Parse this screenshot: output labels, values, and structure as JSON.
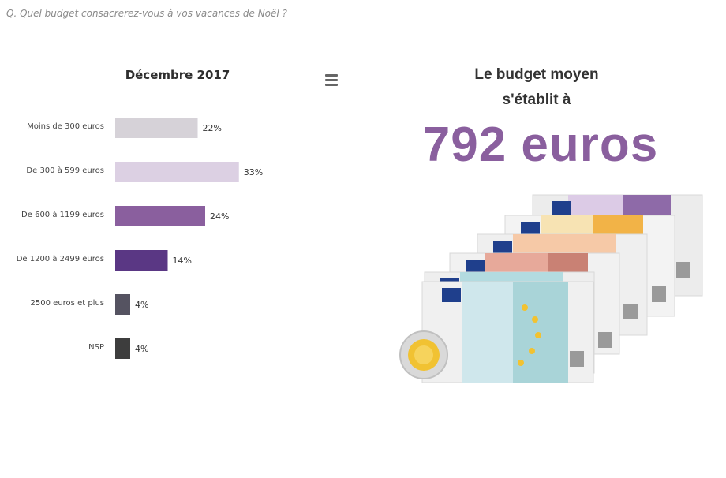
{
  "question": "Q. Quel budget consacrerez-vous à vos vacances de Noël ?",
  "menu_icon": "hamburger-menu-icon",
  "summary": {
    "line1": "Le budget moyen",
    "line2": "s'établit à",
    "value": "792 euros",
    "accent_color": "#8a5f9e"
  },
  "illustration": {
    "banknotes": [
      "500",
      "200",
      "100",
      "50",
      "20",
      "20"
    ],
    "coin": "2-euro-coin"
  },
  "chart_data": {
    "type": "bar",
    "orientation": "horizontal",
    "title": "Décembre 2017",
    "categories": [
      "Moins de 300 euros",
      "De 300 à 599 euros",
      "De 600 à 1199 euros",
      "De 1200 à 2499 euros",
      "2500 euros et plus",
      "NSP"
    ],
    "values": [
      22,
      33,
      24,
      14,
      4,
      4
    ],
    "value_suffix": "%",
    "colors": [
      "#d6d2d8",
      "#dcd0e3",
      "#8a5f9e",
      "#5a3784",
      "#555361",
      "#3d3d3d"
    ],
    "xlim": [
      0,
      100
    ],
    "grid": false
  }
}
